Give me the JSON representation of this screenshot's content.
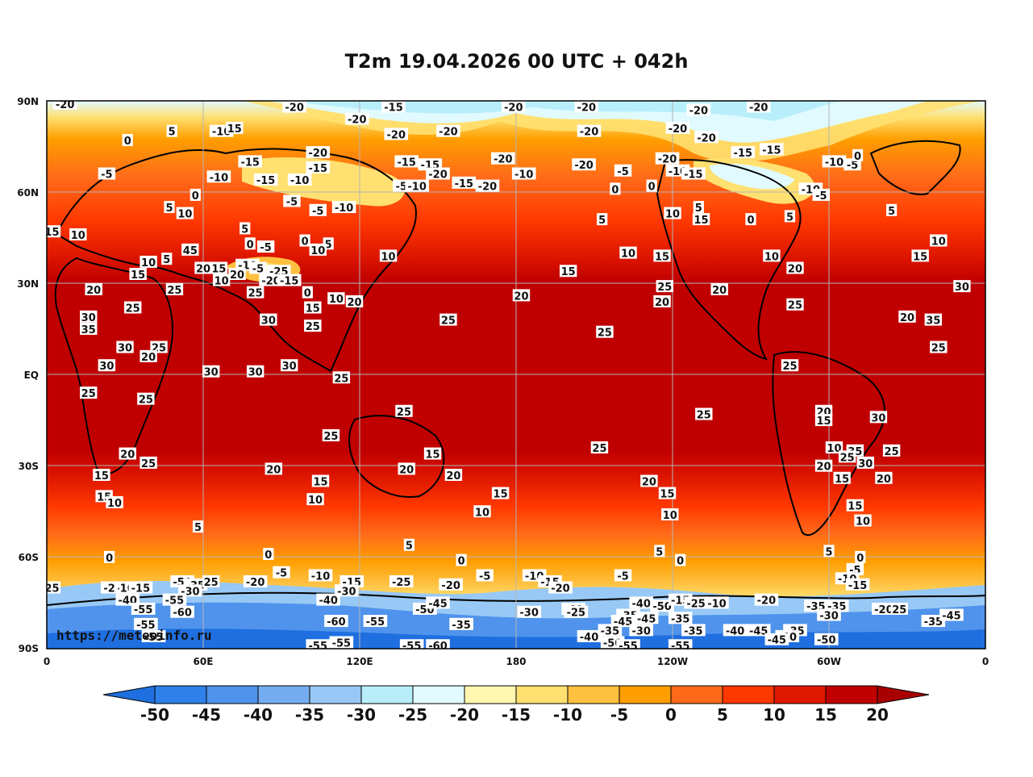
{
  "title": "T2m 19.04.2026 00 UTC + 042h",
  "watermark": "https://meteoinfo.ru",
  "lat_ticks": [
    "90N",
    "60N",
    "30N",
    "EQ",
    "30S",
    "60S",
    "90S"
  ],
  "lon_ticks": [
    "0",
    "60E",
    "120E",
    "180",
    "120W",
    "60W",
    "0"
  ],
  "colorbar": {
    "levels": [
      "-50",
      "-45",
      "-40",
      "-35",
      "-30",
      "-25",
      "-20",
      "-15",
      "-10",
      "-5",
      "0",
      "5",
      "10",
      "15",
      "20"
    ],
    "colors": [
      "#1f6fe0",
      "#2f80e8",
      "#4f93ec",
      "#74acf1",
      "#98c8f5",
      "#b8eefa",
      "#e0faff",
      "#fff6b0",
      "#ffe070",
      "#ffc040",
      "#ff9e00",
      "#ff6a1a",
      "#ff3800",
      "#e01800",
      "#c00000",
      "#a80000"
    ]
  },
  "contour_labels": [
    {
      "t": "-20",
      "lon": 7,
      "lat": 89
    },
    {
      "t": "-20",
      "lon": 95,
      "lat": 88
    },
    {
      "t": "-15",
      "lon": 133,
      "lat": 88
    },
    {
      "t": "-20",
      "lon": 179,
      "lat": 88
    },
    {
      "t": "-20",
      "lon": -153,
      "lat": 88
    },
    {
      "t": "-20",
      "lon": -110,
      "lat": 87
    },
    {
      "t": "-20",
      "lon": -87,
      "lat": 88
    },
    {
      "t": "-20",
      "lon": 119,
      "lat": 84
    },
    {
      "t": "-20",
      "lon": 134,
      "lat": 79
    },
    {
      "t": "-20",
      "lon": 154,
      "lat": 80
    },
    {
      "t": "-20",
      "lon": -152,
      "lat": 80
    },
    {
      "t": "-20",
      "lon": -118,
      "lat": 81
    },
    {
      "t": "-20",
      "lon": -107,
      "lat": 78
    },
    {
      "t": "0",
      "lon": 31,
      "lat": 77
    },
    {
      "t": "5",
      "lon": 48,
      "lat": 80
    },
    {
      "t": "-10",
      "lon": 67,
      "lat": 80
    },
    {
      "t": "15",
      "lon": 72,
      "lat": 81
    },
    {
      "t": "-20",
      "lon": 104,
      "lat": 73
    },
    {
      "t": "-15",
      "lon": -93,
      "lat": 73
    },
    {
      "t": "-5",
      "lon": 23,
      "lat": 66
    },
    {
      "t": "-10",
      "lon": 66,
      "lat": 65
    },
    {
      "t": "-15",
      "lon": 84,
      "lat": 64
    },
    {
      "t": "-15",
      "lon": 78,
      "lat": 70
    },
    {
      "t": "-10",
      "lon": 97,
      "lat": 64
    },
    {
      "t": "-15",
      "lon": 104,
      "lat": 68
    },
    {
      "t": "-15",
      "lon": 138,
      "lat": 70
    },
    {
      "t": "-15",
      "lon": 147,
      "lat": 69
    },
    {
      "t": "-20",
      "lon": 150,
      "lat": 66
    },
    {
      "t": "-15",
      "lon": 160,
      "lat": 63
    },
    {
      "t": "-20",
      "lon": 169,
      "lat": 62
    },
    {
      "t": "-20",
      "lon": 175,
      "lat": 71
    },
    {
      "t": "-10",
      "lon": -177,
      "lat": 66
    },
    {
      "t": "-20",
      "lon": -154,
      "lat": 69
    },
    {
      "t": "-5",
      "lon": -139,
      "lat": 67
    },
    {
      "t": "-20",
      "lon": -122,
      "lat": 71
    },
    {
      "t": "-10",
      "lon": -118,
      "lat": 67
    },
    {
      "t": "-15",
      "lon": -112,
      "lat": 66
    },
    {
      "t": "-15",
      "lon": -82,
      "lat": 74
    },
    {
      "t": "-10",
      "lon": -58,
      "lat": 70
    },
    {
      "t": "-5",
      "lon": -51,
      "lat": 69
    },
    {
      "t": "0",
      "lon": -49,
      "lat": 72
    },
    {
      "t": "-5",
      "lon": 136,
      "lat": 62
    },
    {
      "t": "-10",
      "lon": 142,
      "lat": 62
    },
    {
      "t": "0",
      "lon": -142,
      "lat": 61
    },
    {
      "t": "0",
      "lon": -128,
      "lat": 62
    },
    {
      "t": "-10",
      "lon": -67,
      "lat": 61
    },
    {
      "t": "-5",
      "lon": -63,
      "lat": 59
    },
    {
      "t": "0",
      "lon": 57,
      "lat": 59
    },
    {
      "t": "5",
      "lon": 47,
      "lat": 55
    },
    {
      "t": "10",
      "lon": 53,
      "lat": 53
    },
    {
      "t": "-5",
      "lon": 94,
      "lat": 57
    },
    {
      "t": "-5",
      "lon": 104,
      "lat": 54
    },
    {
      "t": "-10",
      "lon": 114,
      "lat": 55
    },
    {
      "t": "10",
      "lon": -120,
      "lat": 53
    },
    {
      "t": "5",
      "lon": -147,
      "lat": 51
    },
    {
      "t": "5",
      "lon": -110,
      "lat": 55
    },
    {
      "t": "15",
      "lon": -109,
      "lat": 51
    },
    {
      "t": "0",
      "lon": -90,
      "lat": 51
    },
    {
      "t": "5",
      "lon": -75,
      "lat": 52
    },
    {
      "t": "5",
      "lon": -36,
      "lat": 54
    },
    {
      "t": "15",
      "lon": 2,
      "lat": 47
    },
    {
      "t": "10",
      "lon": 12,
      "lat": 46
    },
    {
      "t": "5",
      "lon": 76,
      "lat": 48
    },
    {
      "t": "0",
      "lon": 78,
      "lat": 43
    },
    {
      "t": "-5",
      "lon": 84,
      "lat": 42
    },
    {
      "t": "0",
      "lon": 99,
      "lat": 44
    },
    {
      "t": "5",
      "lon": 108,
      "lat": 43
    },
    {
      "t": "10",
      "lon": 104,
      "lat": 41
    },
    {
      "t": "10",
      "lon": 131,
      "lat": 39
    },
    {
      "t": "10",
      "lon": -137,
      "lat": 40
    },
    {
      "t": "15",
      "lon": -124,
      "lat": 39
    },
    {
      "t": "10",
      "lon": -82,
      "lat": 39
    },
    {
      "t": "20",
      "lon": -73,
      "lat": 35
    },
    {
      "t": "10",
      "lon": -18,
      "lat": 44
    },
    {
      "t": "15",
      "lon": -25,
      "lat": 39
    },
    {
      "t": "45",
      "lon": 55,
      "lat": 41
    },
    {
      "t": "5",
      "lon": 46,
      "lat": 38
    },
    {
      "t": "10",
      "lon": 39,
      "lat": 37
    },
    {
      "t": "15",
      "lon": 35,
      "lat": 33
    },
    {
      "t": "20",
      "lon": 60,
      "lat": 35
    },
    {
      "t": "15",
      "lon": 66,
      "lat": 35
    },
    {
      "t": "10",
      "lon": 67,
      "lat": 31
    },
    {
      "t": "-10",
      "lon": 77,
      "lat": 36
    },
    {
      "t": "-5",
      "lon": 81,
      "lat": 35
    },
    {
      "t": "-25",
      "lon": 89,
      "lat": 34
    },
    {
      "t": "20",
      "lon": 73,
      "lat": 33
    },
    {
      "t": "-20",
      "lon": 86,
      "lat": 31
    },
    {
      "t": "-15",
      "lon": 93,
      "lat": 31
    },
    {
      "t": "15",
      "lon": -160,
      "lat": 34
    },
    {
      "t": "20",
      "lon": 18,
      "lat": 28
    },
    {
      "t": "25",
      "lon": 49,
      "lat": 28
    },
    {
      "t": "25",
      "lon": 80,
      "lat": 27
    },
    {
      "t": "0",
      "lon": 100,
      "lat": 27
    },
    {
      "t": "10",
      "lon": 111,
      "lat": 25
    },
    {
      "t": "20",
      "lon": 118,
      "lat": 24
    },
    {
      "t": "15",
      "lon": 102,
      "lat": 22
    },
    {
      "t": "20",
      "lon": -178,
      "lat": 26
    },
    {
      "t": "25",
      "lon": -123,
      "lat": 29
    },
    {
      "t": "20",
      "lon": -124,
      "lat": 24
    },
    {
      "t": "20",
      "lon": -102,
      "lat": 28
    },
    {
      "t": "25",
      "lon": -73,
      "lat": 23
    },
    {
      "t": "30",
      "lon": -9,
      "lat": 29
    },
    {
      "t": "25",
      "lon": 33,
      "lat": 22
    },
    {
      "t": "30",
      "lon": 16,
      "lat": 19
    },
    {
      "t": "35",
      "lon": 16,
      "lat": 15
    },
    {
      "t": "30",
      "lon": 85,
      "lat": 18
    },
    {
      "t": "25",
      "lon": 102,
      "lat": 16
    },
    {
      "t": "25",
      "lon": 154,
      "lat": 18
    },
    {
      "t": "25",
      "lon": -146,
      "lat": 14
    },
    {
      "t": "20",
      "lon": -30,
      "lat": 19
    },
    {
      "t": "35",
      "lon": -20,
      "lat": 18
    },
    {
      "t": "25",
      "lon": -18,
      "lat": 9
    },
    {
      "t": "30",
      "lon": 30,
      "lat": 9
    },
    {
      "t": "25",
      "lon": 43,
      "lat": 9
    },
    {
      "t": "20",
      "lon": 39,
      "lat": 6
    },
    {
      "t": "30",
      "lon": 23,
      "lat": 3
    },
    {
      "t": "30",
      "lon": 63,
      "lat": 1
    },
    {
      "t": "30",
      "lon": 80,
      "lat": 1
    },
    {
      "t": "30",
      "lon": 93,
      "lat": 3
    },
    {
      "t": "25",
      "lon": 113,
      "lat": -1
    },
    {
      "t": "25",
      "lon": -75,
      "lat": 3
    },
    {
      "t": "25",
      "lon": 16,
      "lat": -6
    },
    {
      "t": "25",
      "lon": 38,
      "lat": -8
    },
    {
      "t": "25",
      "lon": 137,
      "lat": -12
    },
    {
      "t": "25",
      "lon": -108,
      "lat": -13
    },
    {
      "t": "20",
      "lon": -62,
      "lat": -12
    },
    {
      "t": "15",
      "lon": -62,
      "lat": -15
    },
    {
      "t": "30",
      "lon": -41,
      "lat": -14
    },
    {
      "t": "25",
      "lon": 109,
      "lat": -20
    },
    {
      "t": "15",
      "lon": 148,
      "lat": -26
    },
    {
      "t": "25",
      "lon": -148,
      "lat": -24
    },
    {
      "t": "10",
      "lon": -58,
      "lat": -24
    },
    {
      "t": "35",
      "lon": -50,
      "lat": -25
    },
    {
      "t": "25",
      "lon": -53,
      "lat": -27
    },
    {
      "t": "30",
      "lon": -46,
      "lat": -29
    },
    {
      "t": "25",
      "lon": -36,
      "lat": -25
    },
    {
      "t": "20",
      "lon": 31,
      "lat": -26
    },
    {
      "t": "25",
      "lon": 39,
      "lat": -29
    },
    {
      "t": "15",
      "lon": 21,
      "lat": -33
    },
    {
      "t": "20",
      "lon": 87,
      "lat": -31
    },
    {
      "t": "20",
      "lon": 138,
      "lat": -31
    },
    {
      "t": "20",
      "lon": 156,
      "lat": -33
    },
    {
      "t": "20",
      "lon": -129,
      "lat": -35
    },
    {
      "t": "20",
      "lon": -62,
      "lat": -30
    },
    {
      "t": "15",
      "lon": -55,
      "lat": -34
    },
    {
      "t": "20",
      "lon": -39,
      "lat": -34
    },
    {
      "t": "15",
      "lon": 105,
      "lat": -35
    },
    {
      "t": "15",
      "lon": 174,
      "lat": -39
    },
    {
      "t": "15",
      "lon": -122,
      "lat": -39
    },
    {
      "t": "15",
      "lon": 22,
      "lat": -40
    },
    {
      "t": "10",
      "lon": 26,
      "lat": -42
    },
    {
      "t": "10",
      "lon": 103,
      "lat": -41
    },
    {
      "t": "10",
      "lon": 167,
      "lat": -45
    },
    {
      "t": "10",
      "lon": -121,
      "lat": -46
    },
    {
      "t": "15",
      "lon": -50,
      "lat": -43
    },
    {
      "t": "10",
      "lon": -47,
      "lat": -48
    },
    {
      "t": "5",
      "lon": 58,
      "lat": -50
    },
    {
      "t": "5",
      "lon": 139,
      "lat": -56
    },
    {
      "t": "5",
      "lon": -125,
      "lat": -58
    },
    {
      "t": "5",
      "lon": -60,
      "lat": -58
    },
    {
      "t": "0",
      "lon": 24,
      "lat": -60
    },
    {
      "t": "0",
      "lon": 85,
      "lat": -59
    },
    {
      "t": "0",
      "lon": 159,
      "lat": -61
    },
    {
      "t": "0",
      "lon": -117,
      "lat": -61
    },
    {
      "t": "0",
      "lon": -48,
      "lat": -60
    },
    {
      "t": "-5",
      "lon": -50,
      "lat": -64
    },
    {
      "t": "-5",
      "lon": 90,
      "lat": -65
    },
    {
      "t": "-10",
      "lon": 105,
      "lat": -66
    },
    {
      "t": "-15",
      "lon": 117,
      "lat": -68
    },
    {
      "t": "-25",
      "lon": 136,
      "lat": -68
    },
    {
      "t": "-20",
      "lon": 155,
      "lat": -69
    },
    {
      "t": "-5",
      "lon": 168,
      "lat": -66
    },
    {
      "t": "-10",
      "lon": -173,
      "lat": -66
    },
    {
      "t": "-15",
      "lon": -167,
      "lat": -68
    },
    {
      "t": "-20",
      "lon": -163,
      "lat": -70
    },
    {
      "t": "-5",
      "lon": -139,
      "lat": -66
    },
    {
      "t": "-10",
      "lon": -53,
      "lat": -67
    },
    {
      "t": "-15",
      "lon": -49,
      "lat": -69
    },
    {
      "t": "-20",
      "lon": 80,
      "lat": -68
    },
    {
      "t": "25",
      "lon": 2,
      "lat": -70
    },
    {
      "t": "-10",
      "lon": 30,
      "lat": -70
    },
    {
      "t": "-15",
      "lon": 36,
      "lat": -70
    },
    {
      "t": "-2",
      "lon": 24,
      "lat": -70
    },
    {
      "t": "-50",
      "lon": 52,
      "lat": -68
    },
    {
      "t": "-35",
      "lon": 57,
      "lat": -69
    },
    {
      "t": "25",
      "lon": 63,
      "lat": -68
    },
    {
      "t": "-30",
      "lon": 55,
      "lat": -71
    },
    {
      "t": "-30",
      "lon": 115,
      "lat": -71
    },
    {
      "t": "-40",
      "lon": 31,
      "lat": -74
    },
    {
      "t": "-55",
      "lon": 49,
      "lat": -74
    },
    {
      "t": "-40",
      "lon": 108,
      "lat": -74
    },
    {
      "t": "-50",
      "lon": 145,
      "lat": -77
    },
    {
      "t": "-45",
      "lon": 150,
      "lat": -75
    },
    {
      "t": "-40",
      "lon": -158,
      "lat": -77
    },
    {
      "t": "-40",
      "lon": -132,
      "lat": -75
    },
    {
      "t": "-50",
      "lon": -124,
      "lat": -76
    },
    {
      "t": "-15",
      "lon": -117,
      "lat": -74
    },
    {
      "t": "-25",
      "lon": -111,
      "lat": -75
    },
    {
      "t": "-10",
      "lon": -103,
      "lat": -75
    },
    {
      "t": "-20",
      "lon": -84,
      "lat": -74
    },
    {
      "t": "-35",
      "lon": -65,
      "lat": -76
    },
    {
      "t": "-35",
      "lon": -57,
      "lat": -76
    },
    {
      "t": "-20",
      "lon": -39,
      "lat": -77
    },
    {
      "t": "25",
      "lon": -33,
      "lat": -77
    },
    {
      "t": "-60",
      "lon": 52,
      "lat": -78
    },
    {
      "t": "-60",
      "lon": 111,
      "lat": -81
    },
    {
      "t": "-55",
      "lon": 126,
      "lat": -81
    },
    {
      "t": "-35",
      "lon": 159,
      "lat": -82
    },
    {
      "t": "-30",
      "lon": -175,
      "lat": -78
    },
    {
      "t": "-25",
      "lon": -157,
      "lat": -78
    },
    {
      "t": "-35",
      "lon": -137,
      "lat": -79
    },
    {
      "t": "-45",
      "lon": -139,
      "lat": -81
    },
    {
      "t": "-45",
      "lon": -130,
      "lat": -80
    },
    {
      "t": "-35",
      "lon": -117,
      "lat": -80
    },
    {
      "t": "-30",
      "lon": -60,
      "lat": -79
    },
    {
      "t": "-35",
      "lon": -20,
      "lat": -81
    },
    {
      "t": "-45",
      "lon": -13,
      "lat": -79
    },
    {
      "t": "-55",
      "lon": 38,
      "lat": -82
    },
    {
      "t": "-40",
      "lon": -152,
      "lat": -86
    },
    {
      "t": "-35",
      "lon": -144,
      "lat": -84
    },
    {
      "t": "-30",
      "lon": -132,
      "lat": -84
    },
    {
      "t": "-35",
      "lon": -112,
      "lat": -84
    },
    {
      "t": "-40",
      "lon": -96,
      "lat": -84
    },
    {
      "t": "-45",
      "lon": -87,
      "lat": -84
    },
    {
      "t": "-35",
      "lon": -73,
      "lat": -84
    },
    {
      "t": "-40",
      "lon": -76,
      "lat": -86
    },
    {
      "t": "-45",
      "lon": -80,
      "lat": -87
    },
    {
      "t": "-50",
      "lon": -61,
      "lat": -87
    },
    {
      "t": "-55",
      "lon": 41,
      "lat": -86
    },
    {
      "t": "-55",
      "lon": 104,
      "lat": -89
    },
    {
      "t": "-55",
      "lon": 113,
      "lat": -88
    },
    {
      "t": "-55",
      "lon": 140,
      "lat": -89
    },
    {
      "t": "-60",
      "lon": 150,
      "lat": -89
    },
    {
      "t": "-50",
      "lon": -143,
      "lat": -88
    },
    {
      "t": "-55",
      "lon": -137,
      "lat": -89
    },
    {
      "t": "-55",
      "lon": -117,
      "lat": -89
    },
    {
      "t": "-55",
      "lon": 37,
      "lat": -77
    }
  ]
}
